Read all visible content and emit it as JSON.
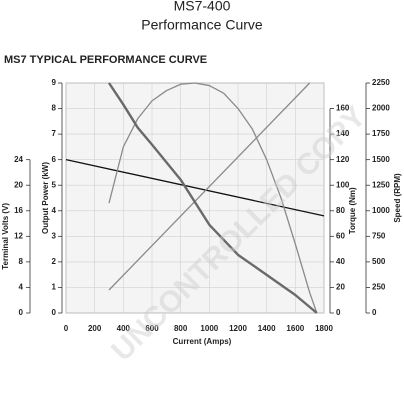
{
  "chart_data": {
    "type": "line",
    "title": "MS7-400",
    "subtitle": "Performance Curve",
    "heading": "MS7 TYPICAL PERFORMANCE CURVE",
    "watermark": "UNCONTROLLED COPY",
    "xlabel": "Current (Amps)",
    "xlim": [
      0,
      1800
    ],
    "xticks": [
      0,
      200,
      400,
      600,
      800,
      1000,
      1200,
      1400,
      1600,
      1800
    ],
    "grid": true,
    "y_axes": [
      {
        "label": "Terminal Volts (V)",
        "lim": [
          0,
          36
        ],
        "ticks": [
          0,
          4,
          8,
          12,
          16,
          20,
          24
        ]
      },
      {
        "label": "Output Power (kW)",
        "lim": [
          0,
          9
        ],
        "ticks": [
          0,
          1,
          2,
          3,
          4,
          5,
          6,
          7,
          8,
          9
        ]
      },
      {
        "label": "Torque (Nm)",
        "lim": [
          0,
          180
        ],
        "ticks": [
          0,
          20,
          40,
          60,
          80,
          100,
          120,
          140,
          160
        ]
      },
      {
        "label": "Speed (RPM)",
        "lim": [
          0,
          2250
        ],
        "ticks": [
          0,
          250,
          500,
          750,
          1000,
          1250,
          1500,
          1750,
          2000,
          2250
        ]
      }
    ],
    "series": [
      {
        "axis": 0,
        "color": "#111111",
        "x": [
          0,
          1800
        ],
        "values": [
          24,
          15.2
        ]
      },
      {
        "axis": 1,
        "color": "#8a8a8a",
        "x": [
          300,
          400,
          500,
          600,
          700,
          800,
          900,
          1000,
          1100,
          1200,
          1300,
          1400,
          1500,
          1600,
          1700,
          1750
        ],
        "values": [
          4.3,
          6.5,
          7.6,
          8.3,
          8.7,
          8.95,
          9,
          8.9,
          8.6,
          8.0,
          7.2,
          6.0,
          4.5,
          2.7,
          0.8,
          0
        ]
      },
      {
        "axis": 2,
        "color": "#8a8a8a",
        "x": [
          300,
          1700
        ],
        "values": [
          18,
          180
        ]
      },
      {
        "axis": 3,
        "color": "#6a6a6a",
        "x": [
          300,
          400,
          500,
          600,
          800,
          1000,
          1200,
          1400,
          1600,
          1750
        ],
        "values": [
          2250,
          2039,
          1814,
          1647,
          1304,
          863,
          569,
          373,
          176,
          0
        ]
      }
    ]
  }
}
